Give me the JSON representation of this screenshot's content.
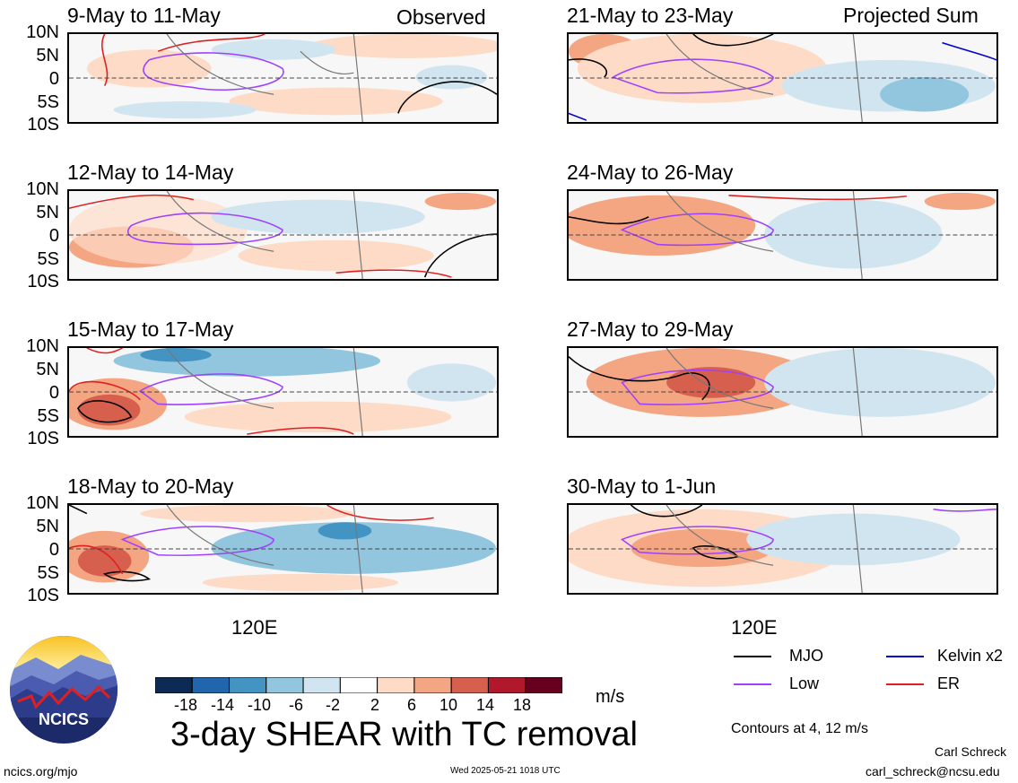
{
  "header": {
    "left": "Observed",
    "right": "Projected Sum"
  },
  "panels": [
    {
      "title": "9-May to 11-May"
    },
    {
      "title": "12-May to 14-May"
    },
    {
      "title": "15-May to 17-May"
    },
    {
      "title": "18-May to 20-May"
    },
    {
      "title": "21-May to 23-May"
    },
    {
      "title": "24-May to 26-May"
    },
    {
      "title": "27-May to 29-May"
    },
    {
      "title": "30-May to 1-Jun"
    }
  ],
  "lat_labels": [
    "10N",
    "5N",
    "0",
    "5S",
    "10S"
  ],
  "lon_label": "120E",
  "colorbar": {
    "unit": "m/s",
    "ticks": [
      "-18",
      "-14",
      "-10",
      "-6",
      "-2",
      "2",
      "6",
      "10",
      "14",
      "18"
    ],
    "colors": [
      "#0d2a55",
      "#2166ac",
      "#4393c3",
      "#92c5de",
      "#d1e5f0",
      "#ffffff",
      "#fddbc7",
      "#f4a582",
      "#d6604d",
      "#b2182b",
      "#67001f"
    ]
  },
  "legend": {
    "items": [
      {
        "label": "MJO",
        "color": "#000000"
      },
      {
        "label": "Kelvin x2",
        "color": "#0000cc"
      },
      {
        "label": "Low",
        "color": "#a040ff"
      },
      {
        "label": "ER",
        "color": "#e02020"
      }
    ],
    "contours": "Contours at 4, 12 m/s"
  },
  "footer": {
    "logo_text": "NCICS",
    "title": "3-day SHEAR with TC removal",
    "url": "ncics.org/mjo",
    "timestamp": "Wed 2025-05-21 1018 UTC",
    "author": "Carl Schreck",
    "email": "carl_schreck@ncsu.edu"
  }
}
